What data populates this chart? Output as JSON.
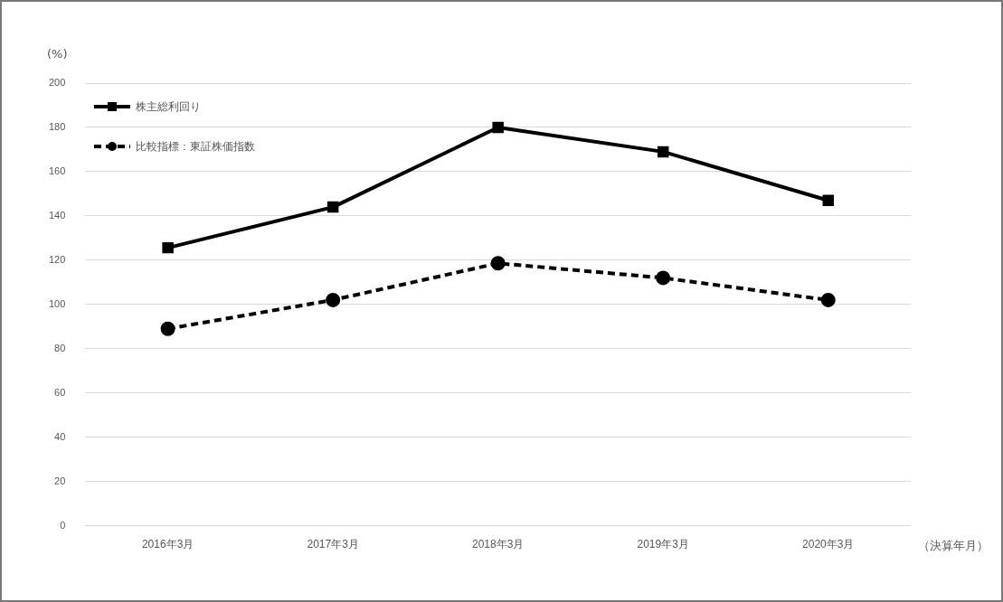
{
  "chart_data": {
    "type": "line",
    "ylabel": "(%)",
    "xlabel": "（決算年月）",
    "categories": [
      "2016年3月",
      "2017年3月",
      "2018年3月",
      "2019年3月",
      "2020年3月"
    ],
    "series": [
      {
        "name": "株主総利回り",
        "color": "#000000",
        "values": [
          125.6,
          144,
          180,
          169,
          147
        ],
        "marker": "square",
        "line_style": "solid"
      },
      {
        "name": "比較指標：東証株価指数",
        "color": "#000000",
        "values": [
          89,
          102,
          118.6,
          112,
          102
        ],
        "marker": "circle",
        "line_style": "dashed"
      }
    ],
    "ylim": [
      0,
      200
    ],
    "yticks": [
      0,
      20,
      40,
      60,
      80,
      100,
      120,
      140,
      160,
      180,
      200
    ],
    "grid": "y",
    "legend": "top left"
  }
}
